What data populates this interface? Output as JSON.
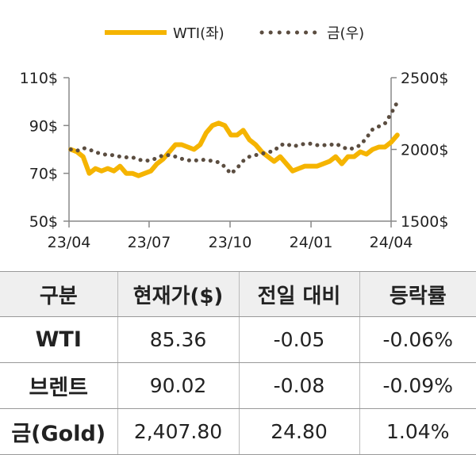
{
  "chart_data": {
    "type": "line",
    "x_ticks": [
      "23/04",
      "23/07",
      "23/10",
      "24/01",
      "24/04"
    ],
    "y_left": {
      "range": [
        50,
        110
      ],
      "ticks": [
        "110$",
        "90$",
        "70$",
        "50$"
      ],
      "tick_values": [
        110,
        90,
        70,
        50
      ]
    },
    "y_right": {
      "range": [
        1500,
        2500
      ],
      "ticks": [
        "2500$",
        "2000$",
        "1500$"
      ],
      "tick_values": [
        2500,
        2000,
        1500
      ]
    },
    "grid": false,
    "legend_position": "top",
    "series": [
      {
        "name": "WTI(좌)",
        "axis": "left",
        "color": "#f5b400",
        "style": "solid",
        "x": [
          "2023-04-03",
          "2023-04-10",
          "2023-04-17",
          "2023-04-24",
          "2023-05-01",
          "2023-05-08",
          "2023-05-15",
          "2023-05-22",
          "2023-05-29",
          "2023-06-05",
          "2023-06-12",
          "2023-06-19",
          "2023-06-26",
          "2023-07-03",
          "2023-07-10",
          "2023-07-17",
          "2023-07-24",
          "2023-07-31",
          "2023-08-07",
          "2023-08-14",
          "2023-08-21",
          "2023-08-28",
          "2023-09-04",
          "2023-09-11",
          "2023-09-18",
          "2023-09-25",
          "2023-10-02",
          "2023-10-09",
          "2023-10-16",
          "2023-10-23",
          "2023-10-30",
          "2023-11-06",
          "2023-11-13",
          "2023-11-20",
          "2023-11-27",
          "2023-12-04",
          "2023-12-11",
          "2023-12-18",
          "2023-12-25",
          "2024-01-01",
          "2024-01-08",
          "2024-01-15",
          "2024-01-22",
          "2024-01-29",
          "2024-02-05",
          "2024-02-12",
          "2024-02-19",
          "2024-02-26",
          "2024-03-04",
          "2024-03-11",
          "2024-03-18",
          "2024-03-25",
          "2024-04-01",
          "2024-04-08"
        ],
        "y": [
          80,
          79,
          77,
          70,
          72,
          71,
          72,
          71,
          73,
          70,
          70,
          69,
          70,
          71,
          74,
          76,
          79,
          82,
          82,
          81,
          80,
          82,
          87,
          90,
          91,
          90,
          86,
          86,
          88,
          84,
          82,
          79,
          77,
          75,
          77,
          74,
          71,
          72,
          73,
          73,
          73,
          74,
          75,
          77,
          74,
          77,
          77,
          79,
          78,
          80,
          81,
          81,
          83,
          86
        ]
      },
      {
        "name": "금(우)",
        "axis": "right",
        "color": "#5b4d40",
        "style": "dotted",
        "x": [
          "2023-04-03",
          "2023-04-10",
          "2023-04-17",
          "2023-04-24",
          "2023-05-01",
          "2023-05-08",
          "2023-05-15",
          "2023-05-22",
          "2023-05-29",
          "2023-06-05",
          "2023-06-12",
          "2023-06-19",
          "2023-06-26",
          "2023-07-03",
          "2023-07-10",
          "2023-07-17",
          "2023-07-24",
          "2023-07-31",
          "2023-08-07",
          "2023-08-14",
          "2023-08-21",
          "2023-08-28",
          "2023-09-04",
          "2023-09-11",
          "2023-09-18",
          "2023-09-25",
          "2023-10-02",
          "2023-10-09",
          "2023-10-16",
          "2023-10-23",
          "2023-10-30",
          "2023-11-06",
          "2023-11-13",
          "2023-11-20",
          "2023-11-27",
          "2023-12-04",
          "2023-12-11",
          "2023-12-18",
          "2023-12-25",
          "2024-01-01",
          "2024-01-08",
          "2024-01-15",
          "2024-01-22",
          "2024-01-29",
          "2024-02-05",
          "2024-02-12",
          "2024-02-19",
          "2024-02-26",
          "2024-03-04",
          "2024-03-11",
          "2024-03-18",
          "2024-03-25",
          "2024-04-01",
          "2024-04-08"
        ],
        "y": [
          2000,
          1990,
          2010,
          2000,
          1980,
          1970,
          1960,
          1960,
          1950,
          1945,
          1945,
          1930,
          1920,
          1925,
          1940,
          1960,
          1960,
          1950,
          1935,
          1925,
          1920,
          1930,
          1925,
          1920,
          1910,
          1880,
          1830,
          1870,
          1920,
          1950,
          1960,
          1970,
          1980,
          1990,
          2030,
          2040,
          2020,
          2030,
          2040,
          2040,
          2030,
          2030,
          2030,
          2040,
          2020,
          2000,
          2010,
          2030,
          2080,
          2140,
          2160,
          2180,
          2250,
          2330
        ]
      }
    ]
  },
  "table": {
    "headers": [
      "구분",
      "현재가($)",
      "전일 대비",
      "등락률"
    ],
    "rows": [
      {
        "label": "WTI",
        "price": "85.36",
        "change": "-0.05",
        "pct": "-0.06%"
      },
      {
        "label": "브렌트",
        "price": "90.02",
        "change": "-0.08",
        "pct": "-0.09%"
      },
      {
        "label": "금(Gold)",
        "price": "2,407.80",
        "change": "24.80",
        "pct": "1.04%"
      }
    ]
  }
}
